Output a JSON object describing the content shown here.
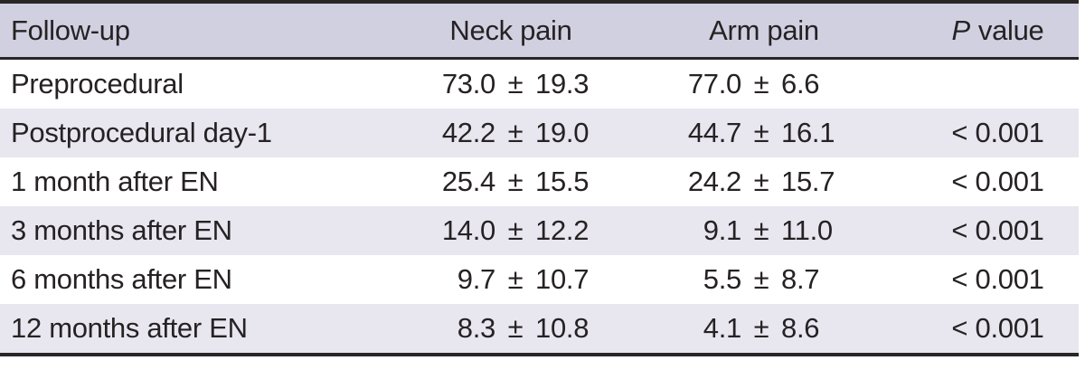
{
  "table": {
    "title_semantic": "Pain scores during follow-up",
    "pm_symbol": "±",
    "header": {
      "followup": "Follow-up",
      "neck": "Neck pain",
      "arm": "Arm pain",
      "p_italic": "P",
      "p_rest": "value"
    },
    "rows": [
      {
        "label": "Preprocedural",
        "neck_mean": "73.0",
        "neck_sd": "19.3",
        "arm_mean": "77.0",
        "arm_sd": "6.6",
        "p": ""
      },
      {
        "label": "Postprocedural day-1",
        "neck_mean": "42.2",
        "neck_sd": "19.0",
        "arm_mean": "44.7",
        "arm_sd": "16.1",
        "p": "< 0.001"
      },
      {
        "label": "1 month after EN",
        "neck_mean": "25.4",
        "neck_sd": "15.5",
        "arm_mean": "24.2",
        "arm_sd": "15.7",
        "p": "< 0.001"
      },
      {
        "label": "3 months after EN",
        "neck_mean": "14.0",
        "neck_sd": "12.2",
        "arm_mean": "9.1",
        "arm_sd": "11.0",
        "p": "< 0.001"
      },
      {
        "label": "6 months after EN",
        "neck_mean": "9.7",
        "neck_sd": "10.7",
        "arm_mean": "5.5",
        "arm_sd": "8.7",
        "p": "< 0.001"
      },
      {
        "label": "12 months after EN",
        "neck_mean": "8.3",
        "neck_sd": "10.8",
        "arm_mean": "4.1",
        "arm_sd": "8.6",
        "p": "< 0.001"
      }
    ],
    "colors": {
      "header_bg": "#d1d0e0",
      "row_alt_bg": "#e8e7f0",
      "rule": "#2a2527",
      "text": "#262224"
    }
  }
}
